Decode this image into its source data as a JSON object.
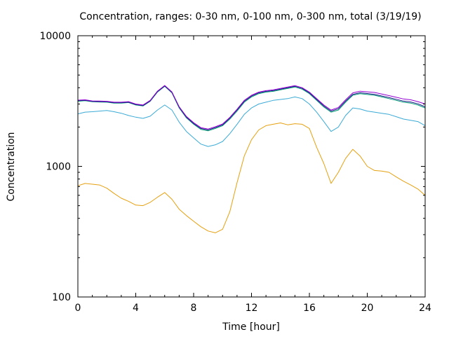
{
  "chart_data": {
    "type": "line",
    "title": "Concentration, ranges: 0-30 nm, 0-100 nm, 0-300 nm, total (3/19/19)",
    "xlabel": "Time [hour]",
    "ylabel": "Concentration",
    "xlim": [
      0,
      24
    ],
    "ylim": [
      100,
      10000
    ],
    "yscale": "log",
    "grid": false,
    "legend": "none",
    "x_ticks": [
      {
        "value": 0,
        "label": "0"
      },
      {
        "value": 4,
        "label": "4"
      },
      {
        "value": 8,
        "label": "8"
      },
      {
        "value": 12,
        "label": "12"
      },
      {
        "value": 16,
        "label": "16"
      },
      {
        "value": 20,
        "label": "20"
      },
      {
        "value": 24,
        "label": "24"
      }
    ],
    "y_ticks": [
      {
        "value": 100,
        "label": "100"
      },
      {
        "value": 1000,
        "label": "1000"
      },
      {
        "value": 10000,
        "label": "10000"
      }
    ],
    "series": [
      {
        "color": "#e5a00f",
        "x": [
          0,
          0.5,
          1,
          1.5,
          2,
          2.5,
          3,
          3.5,
          4,
          4.5,
          5,
          5.5,
          6,
          6.5,
          7,
          7.5,
          8,
          8.5,
          9,
          9.5,
          10,
          10.5,
          11,
          11.5,
          12,
          12.5,
          13,
          13.5,
          14,
          14.5,
          15,
          15.5,
          16,
          16.5,
          17,
          17.5,
          18,
          18.5,
          19,
          19.5,
          20,
          20.5,
          21,
          21.5,
          22,
          22.5,
          23,
          23.5,
          24
        ],
        "values": [
          710,
          740,
          730,
          720,
          680,
          620,
          570,
          540,
          505,
          500,
          530,
          580,
          630,
          560,
          470,
          420,
          380,
          345,
          320,
          310,
          330,
          450,
          750,
          1200,
          1600,
          1900,
          2050,
          2100,
          2150,
          2080,
          2120,
          2100,
          1950,
          1400,
          1050,
          740,
          900,
          1150,
          1350,
          1200,
          1000,
          930,
          920,
          900,
          830,
          770,
          720,
          670,
          600
        ]
      },
      {
        "color": "#3aaad6",
        "x": [
          0,
          0.5,
          1,
          1.5,
          2,
          2.5,
          3,
          3.5,
          4,
          4.5,
          5,
          5.5,
          6,
          6.5,
          7,
          7.5,
          8,
          8.5,
          9,
          9.5,
          10,
          10.5,
          11,
          11.5,
          12,
          12.5,
          13,
          13.5,
          14,
          14.5,
          15,
          15.5,
          16,
          16.5,
          17,
          17.5,
          18,
          18.5,
          19,
          19.5,
          20,
          20.5,
          21,
          21.5,
          22,
          22.5,
          23,
          23.5,
          24
        ],
        "values": [
          2520,
          2600,
          2620,
          2650,
          2680,
          2620,
          2550,
          2450,
          2380,
          2330,
          2420,
          2700,
          2950,
          2700,
          2180,
          1850,
          1650,
          1480,
          1420,
          1460,
          1550,
          1780,
          2100,
          2500,
          2800,
          3000,
          3100,
          3200,
          3250,
          3300,
          3400,
          3300,
          3000,
          2600,
          2200,
          1850,
          2000,
          2450,
          2800,
          2750,
          2650,
          2600,
          2550,
          2500,
          2400,
          2300,
          2250,
          2200,
          2050
        ]
      },
      {
        "color": "#009e73",
        "x": [
          0,
          0.5,
          1,
          1.5,
          2,
          2.5,
          3,
          3.5,
          4,
          4.5,
          5,
          5.5,
          6,
          6.5,
          7,
          7.5,
          8,
          8.5,
          9,
          9.5,
          10,
          10.5,
          11,
          11.5,
          12,
          12.5,
          13,
          13.5,
          14,
          14.5,
          15,
          15.5,
          16,
          16.5,
          17,
          17.5,
          18,
          18.5,
          19,
          19.5,
          20,
          20.5,
          21,
          21.5,
          22,
          22.5,
          23,
          23.5,
          24
        ],
        "values": [
          3150,
          3180,
          3120,
          3110,
          3100,
          3050,
          3050,
          3080,
          2950,
          2900,
          3150,
          3700,
          4100,
          3650,
          2800,
          2350,
          2100,
          1920,
          1870,
          1950,
          2050,
          2300,
          2650,
          3100,
          3400,
          3600,
          3700,
          3750,
          3850,
          3950,
          4050,
          3900,
          3600,
          3200,
          2850,
          2600,
          2700,
          3100,
          3500,
          3600,
          3550,
          3500,
          3400,
          3300,
          3200,
          3100,
          3050,
          2950,
          2800
        ]
      },
      {
        "color": "#1c1c8a",
        "x": [
          0,
          0.5,
          1,
          1.5,
          2,
          2.5,
          3,
          3.5,
          4,
          4.5,
          5,
          5.5,
          6,
          6.5,
          7,
          7.5,
          8,
          8.5,
          9,
          9.5,
          10,
          10.5,
          11,
          11.5,
          12,
          12.5,
          13,
          13.5,
          14,
          14.5,
          15,
          15.5,
          16,
          16.5,
          17,
          17.5,
          18,
          18.5,
          19,
          19.5,
          20,
          20.5,
          21,
          21.5,
          22,
          22.5,
          23,
          23.5,
          24
        ],
        "values": [
          3180,
          3200,
          3140,
          3130,
          3120,
          3070,
          3070,
          3100,
          2970,
          2920,
          3170,
          3730,
          4130,
          3680,
          2830,
          2380,
          2130,
          1950,
          1900,
          1980,
          2080,
          2340,
          2700,
          3150,
          3450,
          3650,
          3750,
          3800,
          3900,
          4000,
          4100,
          3950,
          3650,
          3250,
          2900,
          2650,
          2760,
          3160,
          3560,
          3660,
          3610,
          3560,
          3460,
          3360,
          3260,
          3160,
          3110,
          3010,
          2860
        ]
      },
      {
        "color": "#9400d3",
        "x": [
          0,
          0.5,
          1,
          1.5,
          2,
          2.5,
          3,
          3.5,
          4,
          4.5,
          5,
          5.5,
          6,
          6.5,
          7,
          7.5,
          8,
          8.5,
          9,
          9.5,
          10,
          10.5,
          11,
          11.5,
          12,
          12.5,
          13,
          13.5,
          14,
          14.5,
          15,
          15.5,
          16,
          16.5,
          17,
          17.5,
          18,
          18.5,
          19,
          19.5,
          20,
          20.5,
          21,
          21.5,
          22,
          22.5,
          23,
          23.5,
          24
        ],
        "values": [
          3210,
          3230,
          3170,
          3160,
          3150,
          3100,
          3100,
          3130,
          3000,
          2950,
          3200,
          3760,
          4160,
          3710,
          2860,
          2410,
          2160,
          1980,
          1930,
          2010,
          2110,
          2370,
          2740,
          3200,
          3500,
          3700,
          3800,
          3850,
          3950,
          4050,
          4150,
          4000,
          3700,
          3300,
          2950,
          2700,
          2820,
          3230,
          3650,
          3760,
          3720,
          3680,
          3580,
          3480,
          3380,
          3280,
          3230,
          3130,
          3000
        ]
      }
    ]
  }
}
